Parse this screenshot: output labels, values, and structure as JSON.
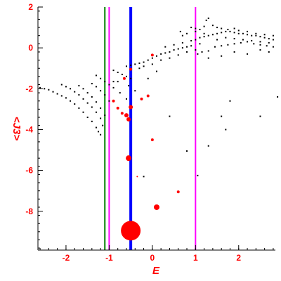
{
  "chart_data": {
    "type": "scatter",
    "title": "",
    "xlabel": "E",
    "ylabel": "<J3>",
    "xlim": [
      -2.65,
      2.85
    ],
    "ylim": [
      -9.9,
      2.0
    ],
    "x_ticks": [
      -2,
      -1,
      0,
      1,
      2
    ],
    "y_ticks": [
      -8,
      -6,
      -4,
      -2,
      0,
      2
    ],
    "grid": false,
    "legend": "none",
    "vertical_lines": [
      {
        "x": -1.1,
        "color": "#008000"
      },
      {
        "x": -1.0,
        "color": "#ff00ff"
      },
      {
        "x": -0.5,
        "color": "#0000ff"
      },
      {
        "x": 1.0,
        "color": "#ff00ff"
      }
    ],
    "series": [
      {
        "color": "#000000",
        "points": [
          [
            -2.6,
            -1.95
          ],
          [
            -2.5,
            -2.0
          ],
          [
            -2.4,
            -2.05
          ],
          [
            -2.3,
            -2.15
          ],
          [
            -2.2,
            -2.25
          ],
          [
            -2.1,
            -2.35
          ],
          [
            -2.0,
            -2.45
          ],
          [
            -1.9,
            -2.6
          ],
          [
            -1.8,
            -2.75
          ],
          [
            -1.7,
            -2.95
          ],
          [
            -1.6,
            -3.15
          ],
          [
            -1.5,
            -3.4
          ],
          [
            -1.4,
            -3.6
          ],
          [
            -1.3,
            -3.9
          ],
          [
            -1.25,
            -4.1
          ],
          [
            -1.2,
            -4.25
          ],
          [
            -2.1,
            -1.8
          ],
          [
            -2.0,
            -1.9
          ],
          [
            -1.9,
            -2.0
          ],
          [
            -1.8,
            -2.15
          ],
          [
            -1.7,
            -2.3
          ],
          [
            -1.6,
            -2.5
          ],
          [
            -1.5,
            -2.7
          ],
          [
            -1.4,
            -2.9
          ],
          [
            -1.3,
            -3.15
          ],
          [
            -1.2,
            -3.45
          ],
          [
            -1.15,
            -3.8
          ],
          [
            -1.7,
            -1.85
          ],
          [
            -1.6,
            -2.0
          ],
          [
            -1.5,
            -2.2
          ],
          [
            -1.4,
            -2.4
          ],
          [
            -1.3,
            -2.65
          ],
          [
            -1.2,
            -2.95
          ],
          [
            -1.1,
            -3.3
          ],
          [
            -1.4,
            -1.75
          ],
          [
            -1.3,
            -1.9
          ],
          [
            -1.2,
            -2.1
          ],
          [
            -1.1,
            -2.3
          ],
          [
            -1.0,
            -2.6
          ],
          [
            -1.3,
            -1.35
          ],
          [
            -1.2,
            -1.5
          ],
          [
            -1.1,
            -1.65
          ],
          [
            -1.0,
            -1.8
          ],
          [
            -0.9,
            -1.95
          ],
          [
            -0.9,
            -1.1
          ],
          [
            -0.8,
            -1.2
          ],
          [
            -0.7,
            -1.3
          ],
          [
            -0.6,
            -1.4
          ],
          [
            -0.5,
            -1.5
          ],
          [
            -0.4,
            -0.8
          ],
          [
            -0.3,
            -0.75
          ],
          [
            -0.2,
            -0.7
          ],
          [
            -0.1,
            -0.6
          ],
          [
            0.0,
            -0.5
          ],
          [
            0.1,
            -0.4
          ],
          [
            0.2,
            -0.3
          ],
          [
            0.3,
            -0.25
          ],
          [
            0.4,
            -0.2
          ],
          [
            0.5,
            -0.1
          ],
          [
            0.6,
            -0.05
          ],
          [
            0.7,
            0.0
          ],
          [
            0.8,
            0.05
          ],
          [
            0.9,
            0.1
          ],
          [
            -0.6,
            -0.9
          ],
          [
            -0.5,
            -0.85
          ],
          [
            -0.3,
            -1.0
          ],
          [
            -0.2,
            -0.9
          ],
          [
            0.0,
            -0.8
          ],
          [
            0.2,
            -0.6
          ],
          [
            0.4,
            -0.5
          ],
          [
            0.6,
            -0.35
          ],
          [
            0.8,
            -0.2
          ],
          [
            1.0,
            -0.1
          ],
          [
            0.3,
            0.05
          ],
          [
            0.5,
            0.15
          ],
          [
            0.7,
            0.25
          ],
          [
            0.9,
            0.35
          ],
          [
            1.0,
            0.4
          ],
          [
            1.1,
            0.5
          ],
          [
            1.2,
            0.55
          ],
          [
            1.3,
            0.6
          ],
          [
            1.4,
            0.65
          ],
          [
            1.5,
            0.7
          ],
          [
            1.6,
            0.75
          ],
          [
            1.7,
            0.8
          ],
          [
            1.8,
            0.8
          ],
          [
            1.9,
            0.75
          ],
          [
            2.0,
            0.7
          ],
          [
            2.1,
            0.7
          ],
          [
            2.2,
            0.65
          ],
          [
            2.3,
            0.6
          ],
          [
            2.4,
            0.6
          ],
          [
            2.5,
            0.55
          ],
          [
            2.6,
            0.5
          ],
          [
            2.7,
            0.45
          ],
          [
            2.8,
            0.4
          ],
          [
            1.0,
            0.8
          ],
          [
            1.1,
            0.9
          ],
          [
            1.2,
            1.05
          ],
          [
            1.25,
            1.35
          ],
          [
            1.3,
            1.45
          ],
          [
            1.4,
            1.1
          ],
          [
            1.5,
            1.0
          ],
          [
            1.6,
            0.95
          ],
          [
            1.75,
            0.9
          ],
          [
            1.9,
            0.95
          ],
          [
            2.0,
            0.85
          ],
          [
            2.2,
            0.8
          ],
          [
            2.4,
            0.7
          ],
          [
            2.6,
            0.65
          ],
          [
            2.8,
            0.6
          ],
          [
            1.05,
            -0.3
          ],
          [
            1.15,
            -0.2
          ],
          [
            1.3,
            -0.15
          ],
          [
            1.45,
            0.05
          ],
          [
            1.6,
            0.1
          ],
          [
            1.75,
            0.15
          ],
          [
            1.9,
            0.2
          ],
          [
            2.05,
            0.25
          ],
          [
            2.2,
            0.3
          ],
          [
            2.35,
            0.2
          ],
          [
            2.5,
            0.15
          ],
          [
            2.65,
            0.1
          ],
          [
            2.8,
            0.05
          ],
          [
            1.5,
            0.4
          ],
          [
            1.7,
            0.5
          ],
          [
            1.9,
            0.45
          ],
          [
            2.1,
            0.4
          ],
          [
            2.3,
            0.35
          ],
          [
            2.5,
            0.3
          ],
          [
            2.7,
            0.25
          ],
          [
            1.3,
            -0.5
          ],
          [
            1.6,
            -0.4
          ],
          [
            1.9,
            -0.2
          ],
          [
            2.2,
            -0.3
          ],
          [
            2.5,
            -0.1
          ],
          [
            2.7,
            -0.2
          ],
          [
            0.9,
            1.0
          ],
          [
            0.8,
            0.7
          ],
          [
            1.1,
            0.2
          ],
          [
            0.7,
            0.6
          ],
          [
            0.65,
            0.8
          ],
          [
            1.0,
            0.95
          ],
          [
            1.2,
            0.7
          ],
          [
            0.1,
            -1.15
          ],
          [
            -0.1,
            -1.5
          ],
          [
            -0.8,
            -1.65
          ],
          [
            -0.75,
            -2.2
          ],
          [
            -0.55,
            -1.85
          ],
          [
            -0.6,
            -2.5
          ],
          [
            0.4,
            -3.35
          ],
          [
            1.6,
            -3.35
          ],
          [
            2.5,
            -3.35
          ],
          [
            2.9,
            -2.4
          ],
          [
            1.8,
            -2.6
          ],
          [
            1.7,
            -4.0
          ],
          [
            1.3,
            -4.8
          ],
          [
            0.8,
            -5.05
          ],
          [
            1.05,
            -6.25
          ],
          [
            -0.2,
            -6.3
          ],
          [
            -0.9,
            -1.65
          ],
          [
            -0.4,
            -2.1
          ]
        ]
      },
      {
        "color": "#ff0000",
        "points": [
          [
            -0.5,
            -8.95,
            14
          ],
          [
            0.1,
            -7.8,
            4
          ],
          [
            -0.55,
            -5.4,
            4
          ],
          [
            -0.55,
            -3.5,
            3
          ],
          [
            -0.6,
            -3.3,
            3
          ],
          [
            -0.7,
            -3.2,
            2
          ],
          [
            -0.8,
            -2.95,
            2
          ],
          [
            -0.5,
            -2.9,
            3
          ],
          [
            -0.65,
            -1.5,
            2
          ],
          [
            -0.9,
            -2.6,
            2
          ],
          [
            -0.25,
            -2.5,
            2
          ],
          [
            -0.1,
            -2.35,
            2
          ],
          [
            0.0,
            -4.5,
            2
          ],
          [
            0.6,
            -7.05,
            2
          ],
          [
            0.0,
            -0.35,
            2
          ],
          [
            -0.5,
            -1.05,
            2
          ],
          [
            -0.35,
            -6.3,
            1
          ]
        ]
      }
    ]
  }
}
